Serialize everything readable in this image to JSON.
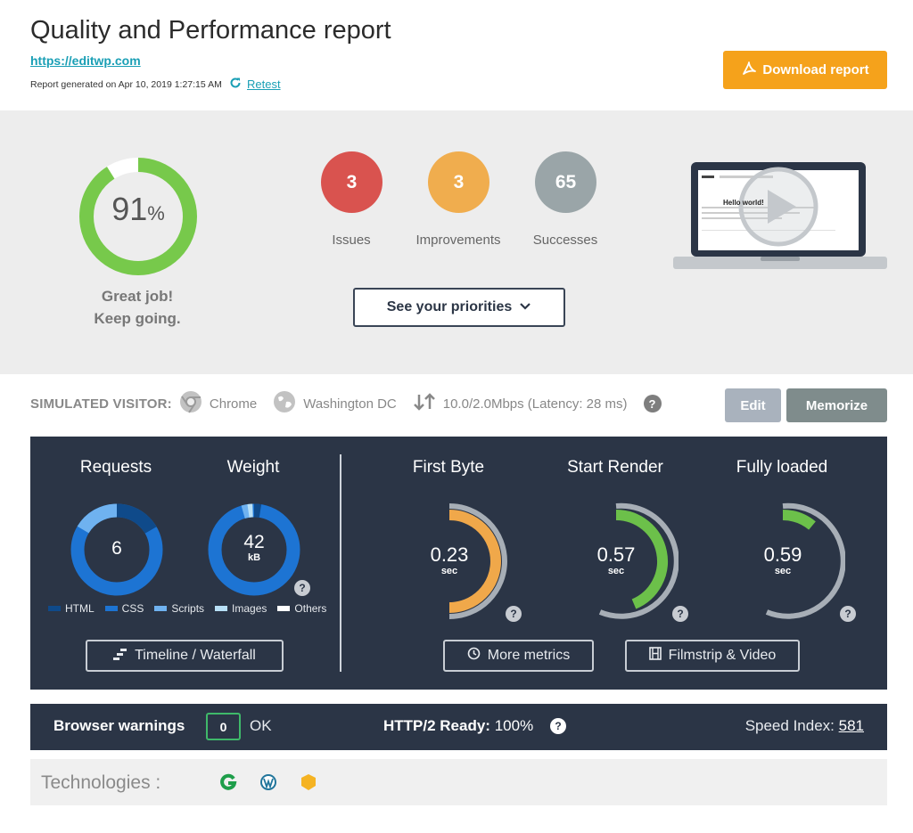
{
  "header": {
    "title": "Quality and Performance report",
    "url": "https://editwp.com",
    "generated": "Report generated on Apr 10, 2019 1:27:15 AM",
    "retest_label": "Retest",
    "download_label": "Download report"
  },
  "summary": {
    "score": "91",
    "score_unit": "%",
    "score_fraction": 0.91,
    "message_line1": "Great job!",
    "message_line2": "Keep going.",
    "counts": [
      {
        "value": "3",
        "label": "Issues",
        "color": "#d9534f"
      },
      {
        "value": "3",
        "label": "Improvements",
        "color": "#f0ad4e"
      },
      {
        "value": "65",
        "label": "Successes",
        "color": "#9aa5a8"
      }
    ],
    "priorities_label": "See your priorities",
    "preview": {
      "heading": "Hello world!"
    }
  },
  "visitor": {
    "label": "SIMULATED VISITOR:",
    "browser": "Chrome",
    "location": "Washington DC",
    "connection": "10.0/2.0Mbps (Latency: 28 ms)",
    "edit_label": "Edit",
    "memorize_label": "Memorize"
  },
  "metrics": {
    "requests_title": "Requests",
    "weight_title": "Weight",
    "requests_value": "6",
    "weight_value": "42",
    "weight_unit": "kB",
    "legend": [
      {
        "label": "HTML",
        "color": "#0f4a8a"
      },
      {
        "label": "CSS",
        "color": "#1d74d3"
      },
      {
        "label": "Scripts",
        "color": "#6fb2f0"
      },
      {
        "label": "Images",
        "color": "#b8e0f7"
      },
      {
        "label": "Others",
        "color": "#ffffff"
      }
    ],
    "timeline_label": "Timeline / Waterfall",
    "first_byte_title": "First Byte",
    "start_render_title": "Start Render",
    "fully_loaded_title": "Fully loaded",
    "first_byte_value": "0.23",
    "start_render_value": "0.57",
    "fully_loaded_value": "0.59",
    "time_unit": "sec",
    "first_byte_color": "#f0a84a",
    "start_render_color": "#6cc04a",
    "fully_loaded_color": "#6cc04a",
    "more_metrics_label": "More metrics",
    "filmstrip_label": "Filmstrip & Video"
  },
  "warnings": {
    "label": "Browser warnings",
    "count": "0",
    "status": "OK",
    "http2_label": "HTTP/2 Ready:",
    "http2_value": "100%",
    "speed_index_label": "Speed Index:",
    "speed_index_value": "581"
  },
  "technologies": {
    "label": "Technologies :",
    "icons": [
      "google-icon",
      "wordpress-icon",
      "shield-icon"
    ]
  }
}
